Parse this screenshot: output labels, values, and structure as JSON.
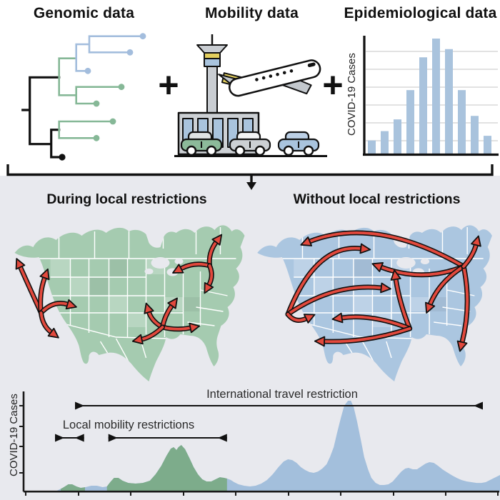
{
  "top": {
    "genomic_title": "Genomic data",
    "mobility_title": "Mobility data",
    "epi_title": "Epidemiological data",
    "plus": "+",
    "epi_ylabel": "COVID-19 Cases"
  },
  "maps": {
    "left_title": "During local restrictions",
    "right_title": "Without local restrictions"
  },
  "timeline": {
    "ylabel": "COVID-19 Cases",
    "international_label": "International travel restriction",
    "local_label": "Local mobility restrictions",
    "international_span": [
      0.108,
      0.964
    ],
    "local_spans": [
      [
        0.066,
        0.127
      ],
      [
        0.178,
        0.427
      ]
    ]
  },
  "colors": {
    "green_map": "#a5cbb0",
    "blue_map": "#abc6e0",
    "green_area": "#7dac8b",
    "blue_area": "#a3bfdc",
    "bar_blue": "#a9c3dd",
    "arrow_red": "#e2493d",
    "tree_blue": "#a3bddd",
    "tree_green": "#86b897",
    "lower_bg": "#e8e9ee"
  },
  "chart_data": [
    {
      "type": "bar",
      "title": "Epidemiological data",
      "ylabel": "COVID-19 Cases",
      "xlabel": "",
      "categories": [
        "",
        "",
        "",
        "",
        "",
        "",
        "",
        "",
        "",
        ""
      ],
      "values": [
        0.13,
        0.21,
        0.31,
        0.56,
        0.84,
        1.0,
        0.91,
        0.56,
        0.34,
        0.17
      ],
      "ylim": [
        0,
        1
      ],
      "gridlines": true,
      "note": "axes carry no numeric labels; bar heights relative to tallest bar"
    },
    {
      "type": "area",
      "title": "COVID-19 cases over time with restriction periods",
      "ylabel": "COVID-19 Cases",
      "xlabel": "",
      "note": "x = time fraction (axis unlabeled), y = cases relative to largest peak",
      "green_ranges": [
        [
          0.078,
          0.129
        ],
        [
          0.175,
          0.427
        ]
      ],
      "series": [
        {
          "name": "during local restrictions",
          "color": "#7dac8b"
        },
        {
          "name": "without local restrictions",
          "color": "#a3bfdc"
        }
      ],
      "points": [
        [
          0.0,
          0.0
        ],
        [
          0.07,
          0.008
        ],
        [
          0.082,
          0.039
        ],
        [
          0.094,
          0.079
        ],
        [
          0.102,
          0.079
        ],
        [
          0.111,
          0.055
        ],
        [
          0.12,
          0.039
        ],
        [
          0.13,
          0.047
        ],
        [
          0.142,
          0.063
        ],
        [
          0.154,
          0.063
        ],
        [
          0.166,
          0.047
        ],
        [
          0.175,
          0.055
        ],
        [
          0.183,
          0.11
        ],
        [
          0.19,
          0.15
        ],
        [
          0.199,
          0.15
        ],
        [
          0.208,
          0.118
        ],
        [
          0.22,
          0.094
        ],
        [
          0.235,
          0.087
        ],
        [
          0.25,
          0.094
        ],
        [
          0.265,
          0.118
        ],
        [
          0.277,
          0.189
        ],
        [
          0.289,
          0.283
        ],
        [
          0.3,
          0.394
        ],
        [
          0.309,
          0.472
        ],
        [
          0.315,
          0.488
        ],
        [
          0.321,
          0.457
        ],
        [
          0.325,
          0.488
        ],
        [
          0.331,
          0.512
        ],
        [
          0.339,
          0.465
        ],
        [
          0.348,
          0.37
        ],
        [
          0.357,
          0.268
        ],
        [
          0.366,
          0.189
        ],
        [
          0.375,
          0.134
        ],
        [
          0.384,
          0.11
        ],
        [
          0.394,
          0.11
        ],
        [
          0.403,
          0.134
        ],
        [
          0.412,
          0.157
        ],
        [
          0.421,
          0.15
        ],
        [
          0.427,
          0.142
        ],
        [
          0.435,
          0.126
        ],
        [
          0.442,
          0.102
        ],
        [
          0.451,
          0.079
        ],
        [
          0.463,
          0.063
        ],
        [
          0.475,
          0.055
        ],
        [
          0.487,
          0.063
        ],
        [
          0.499,
          0.087
        ],
        [
          0.511,
          0.126
        ],
        [
          0.523,
          0.189
        ],
        [
          0.535,
          0.268
        ],
        [
          0.546,
          0.331
        ],
        [
          0.555,
          0.354
        ],
        [
          0.564,
          0.346
        ],
        [
          0.573,
          0.315
        ],
        [
          0.582,
          0.268
        ],
        [
          0.591,
          0.236
        ],
        [
          0.6,
          0.213
        ],
        [
          0.609,
          0.205
        ],
        [
          0.618,
          0.22
        ],
        [
          0.627,
          0.252
        ],
        [
          0.636,
          0.299
        ],
        [
          0.643,
          0.378
        ],
        [
          0.651,
          0.488
        ],
        [
          0.658,
          0.646
        ],
        [
          0.666,
          0.811
        ],
        [
          0.673,
          0.945
        ],
        [
          0.681,
          1.0
        ],
        [
          0.687,
          1.0
        ],
        [
          0.693,
          0.929
        ],
        [
          0.7,
          0.772
        ],
        [
          0.708,
          0.567
        ],
        [
          0.715,
          0.378
        ],
        [
          0.723,
          0.244
        ],
        [
          0.73,
          0.15
        ],
        [
          0.739,
          0.094
        ],
        [
          0.748,
          0.071
        ],
        [
          0.757,
          0.071
        ],
        [
          0.766,
          0.079
        ],
        [
          0.775,
          0.11
        ],
        [
          0.784,
          0.165
        ],
        [
          0.793,
          0.22
        ],
        [
          0.801,
          0.252
        ],
        [
          0.808,
          0.26
        ],
        [
          0.817,
          0.244
        ],
        [
          0.826,
          0.244
        ],
        [
          0.835,
          0.276
        ],
        [
          0.844,
          0.307
        ],
        [
          0.852,
          0.323
        ],
        [
          0.861,
          0.315
        ],
        [
          0.87,
          0.283
        ],
        [
          0.879,
          0.244
        ],
        [
          0.888,
          0.213
        ],
        [
          0.898,
          0.181
        ],
        [
          0.909,
          0.15
        ],
        [
          0.919,
          0.126
        ],
        [
          0.93,
          0.11
        ],
        [
          0.94,
          0.102
        ],
        [
          0.951,
          0.094
        ],
        [
          0.961,
          0.094
        ],
        [
          0.97,
          0.102
        ],
        [
          0.979,
          0.126
        ],
        [
          0.988,
          0.15
        ],
        [
          0.997,
          0.173
        ],
        [
          1.0,
          0.181
        ]
      ]
    }
  ]
}
